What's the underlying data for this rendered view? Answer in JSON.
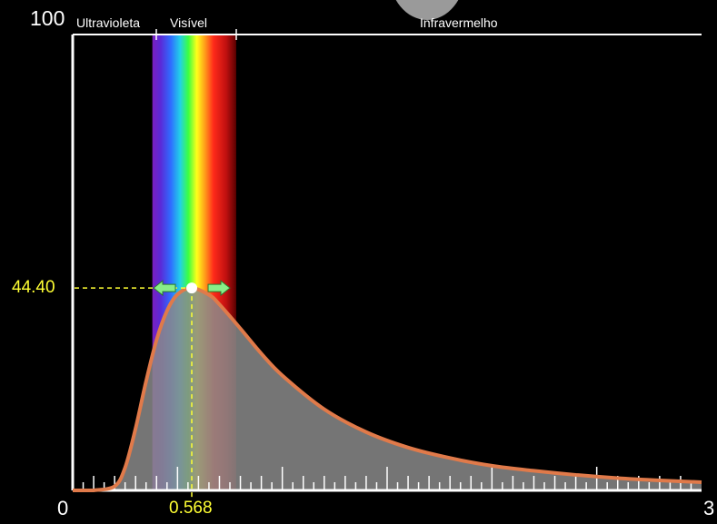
{
  "axes": {
    "y_max_label": "100",
    "x_min_label": "0",
    "x_max_label": "3"
  },
  "regions": {
    "ultraviolet": "Ultravioleta",
    "visible": "Visível",
    "infrared": "Infravermelho"
  },
  "peak": {
    "intensity_label": "44.40",
    "wavelength_label": "0.568",
    "intensity": 44.4,
    "wavelength": 0.568
  },
  "chart_data": {
    "type": "area",
    "x_range": [
      0,
      3
    ],
    "y_range": [
      0,
      100
    ],
    "visible_band": [
      0.38,
      0.78
    ],
    "series": [
      {
        "x": [
          0.1,
          0.2,
          0.25,
          0.3,
          0.35,
          0.4,
          0.45,
          0.5,
          0.568,
          0.65,
          0.7,
          0.8,
          0.9,
          1.0,
          1.2,
          1.4,
          1.6,
          1.8,
          2.0,
          2.2,
          2.4,
          2.6,
          2.8,
          3.0
        ],
        "y": [
          0.0,
          0.9,
          5.0,
          13.6,
          23.9,
          33.0,
          39.4,
          43.0,
          44.4,
          42.9,
          40.8,
          35.5,
          30.0,
          25.2,
          17.8,
          12.8,
          9.4,
          7.1,
          5.4,
          4.3,
          3.4,
          2.7,
          2.2,
          1.8
        ]
      }
    ]
  },
  "colors": {
    "curve": "#e07a4a",
    "fill": "#8a8a8a",
    "axis": "#ffffff",
    "peak_marker": "#ffff33",
    "arrow": "#88ee88"
  }
}
